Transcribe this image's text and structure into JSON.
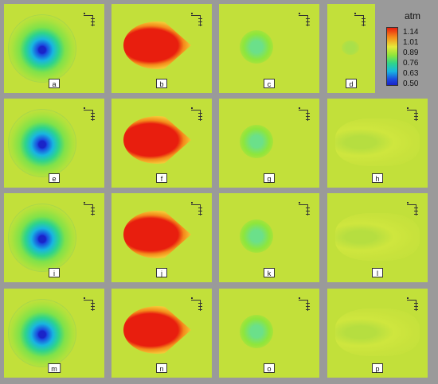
{
  "figure": {
    "panels": [
      {
        "label": "a",
        "kind": "low"
      },
      {
        "label": "b",
        "kind": "high"
      },
      {
        "label": "c",
        "kind": "mid"
      },
      {
        "label": "d",
        "kind": "faint"
      },
      {
        "label": "e",
        "kind": "low"
      },
      {
        "label": "f",
        "kind": "high"
      },
      {
        "label": "g",
        "kind": "mid"
      },
      {
        "label": "h",
        "kind": "wake"
      },
      {
        "label": "i",
        "kind": "low"
      },
      {
        "label": "j",
        "kind": "high"
      },
      {
        "label": "k",
        "kind": "mid"
      },
      {
        "label": "l",
        "kind": "wake"
      },
      {
        "label": "m",
        "kind": "low"
      },
      {
        "label": "n",
        "kind": "high"
      },
      {
        "label": "o",
        "kind": "mid"
      },
      {
        "label": "p",
        "kind": "wake"
      }
    ]
  },
  "legend": {
    "title": "atm",
    "ticks": [
      "1.14",
      "1.01",
      "0.89",
      "0.76",
      "0.63",
      "0.50"
    ],
    "colors": {
      "background": "#c2e03a",
      "high": "#e81e0e",
      "low": "#1a24c8",
      "mid": "#2fd48a"
    }
  }
}
